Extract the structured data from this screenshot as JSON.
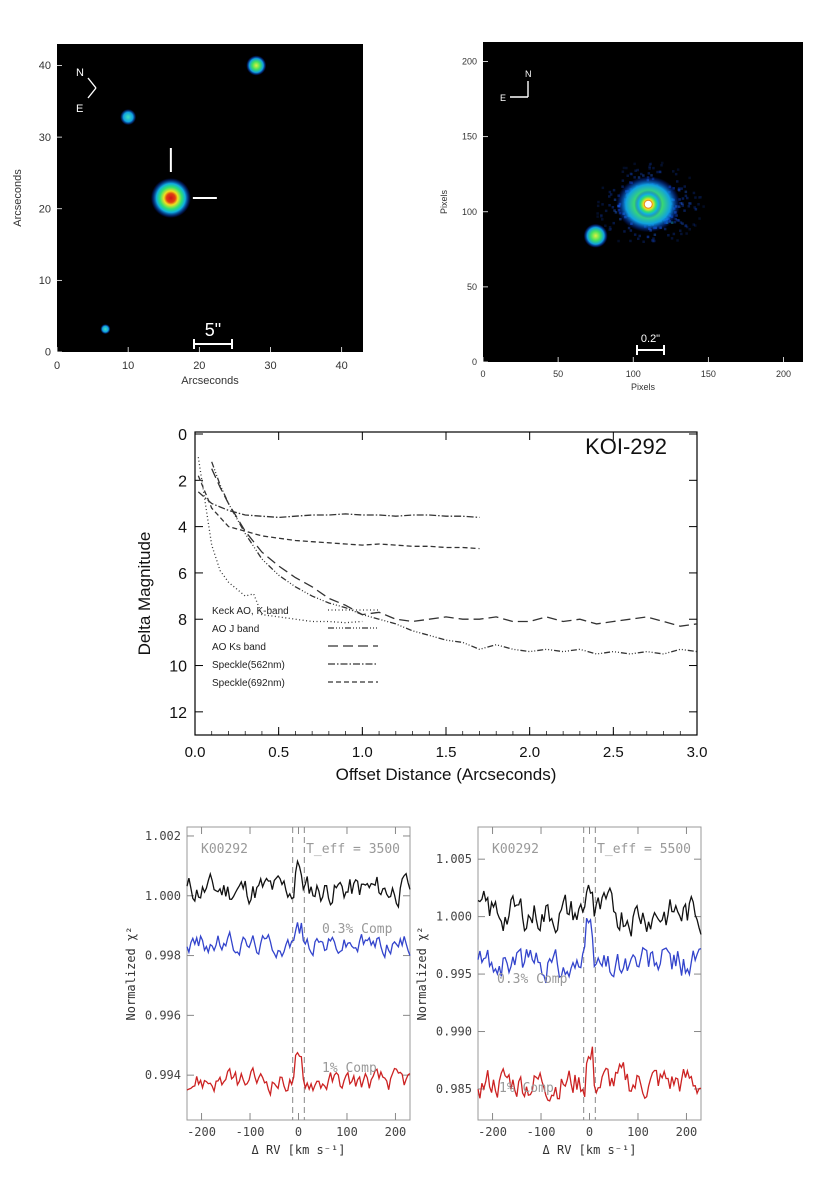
{
  "chart_data": [
    {
      "type": "heatmap",
      "panel": "wide-field",
      "xlabel": "Arcseconds",
      "ylabel": "Arcseconds",
      "xlim": [
        0,
        43
      ],
      "ylim": [
        0,
        43
      ],
      "xticks": [
        "0",
        "10",
        "20",
        "30",
        "40"
      ],
      "yticks": [
        "0",
        "10",
        "20",
        "30",
        "40"
      ],
      "compass": {
        "n": "N",
        "e": "E"
      },
      "scale_bar": "5\"",
      "background": "#000000",
      "sources": [
        {
          "x": 16,
          "y": 21.5,
          "brightness": "target",
          "marked": true
        },
        {
          "x": 28,
          "y": 40,
          "brightness": "bright"
        },
        {
          "x": 10,
          "y": 32.8,
          "brightness": "medium"
        },
        {
          "x": 6.8,
          "y": 3.2,
          "brightness": "faint"
        }
      ]
    },
    {
      "type": "heatmap",
      "panel": "ao-image",
      "xlabel": "Pixels",
      "ylabel": "Pixels",
      "xlim": [
        0,
        213
      ],
      "ylim": [
        0,
        213
      ],
      "xticks": [
        "0",
        "50",
        "100",
        "150",
        "200"
      ],
      "yticks": [
        "0",
        "50",
        "100",
        "150",
        "200"
      ],
      "compass": {
        "n": "N",
        "e": "E"
      },
      "scale_bar": "0.2\"",
      "background": "#000000",
      "sources": [
        {
          "x": 110,
          "y": 105,
          "brightness": "target"
        },
        {
          "x": 75,
          "y": 84,
          "brightness": "companion"
        }
      ]
    },
    {
      "type": "line",
      "panel": "contrast-curves",
      "title": "KOI-292",
      "xlabel": "Offset Distance (Arcseconds)",
      "ylabel": "Delta Magnitude",
      "xlim": [
        0,
        3
      ],
      "ylim": [
        13,
        0
      ],
      "xticks": [
        "0.0",
        "0.5",
        "1.0",
        "1.5",
        "2.0",
        "2.5",
        "3.0"
      ],
      "yticks": [
        "0",
        "2",
        "4",
        "6",
        "8",
        "10",
        "12"
      ],
      "legend_position": "bottom-left",
      "series": [
        {
          "name": "Keck AO, K-band",
          "dash": "1,2.5",
          "x": [
            0.02,
            0.1,
            0.15,
            0.2,
            0.3,
            0.35,
            0.4,
            0.5,
            0.6,
            0.7,
            0.8,
            0.9,
            1.0
          ],
          "y": [
            1.0,
            4.8,
            5.9,
            6.4,
            7.0,
            6.9,
            7.8,
            7.9,
            8.0,
            8.1,
            8.1,
            8.15,
            8.1
          ]
        },
        {
          "name": "AO J band",
          "dash": "6,2,1,2,1,2,1,2",
          "x": [
            0.1,
            0.15,
            0.2,
            0.3,
            0.4,
            0.5,
            0.6,
            0.7,
            0.8,
            0.9,
            1.0,
            1.1,
            1.2,
            1.3,
            1.4,
            1.5,
            1.6,
            1.7,
            1.8,
            1.9,
            2.0,
            2.1,
            2.2,
            2.3,
            2.4,
            2.5,
            2.6,
            2.7,
            2.8,
            2.9,
            3.0
          ],
          "y": [
            1.2,
            2.2,
            3.0,
            4.3,
            5.4,
            6.1,
            6.6,
            7.0,
            7.3,
            7.5,
            7.8,
            8.0,
            8.2,
            8.5,
            8.7,
            8.9,
            9.0,
            9.3,
            9.1,
            9.3,
            9.4,
            9.3,
            9.4,
            9.3,
            9.5,
            9.4,
            9.5,
            9.4,
            9.5,
            9.3,
            9.4
          ]
        },
        {
          "name": "AO Ks band",
          "dash": "10,5",
          "x": [
            0.1,
            0.15,
            0.2,
            0.3,
            0.4,
            0.5,
            0.6,
            0.7,
            0.8,
            0.9,
            1.0,
            1.1,
            1.2,
            1.3,
            1.4,
            1.5,
            1.6,
            1.7,
            1.8,
            1.9,
            2.0,
            2.1,
            2.2,
            2.3,
            2.4,
            2.5,
            2.6,
            2.7,
            2.8,
            2.9,
            3.0
          ],
          "y": [
            1.5,
            2.3,
            3.0,
            4.2,
            5.1,
            5.7,
            6.2,
            6.6,
            7.1,
            7.4,
            7.8,
            7.7,
            8.0,
            8.1,
            8.0,
            7.9,
            8.0,
            8.0,
            7.9,
            8.1,
            8.1,
            7.9,
            8.1,
            8.0,
            8.2,
            8.1,
            8.0,
            7.9,
            8.1,
            8.3,
            8.2
          ]
        },
        {
          "name": "Speckle(562nm)",
          "dash": "7,2,1.5,2",
          "x": [
            0.02,
            0.1,
            0.2,
            0.3,
            0.4,
            0.5,
            0.6,
            0.7,
            0.8,
            0.9,
            1.0,
            1.1,
            1.2,
            1.3,
            1.4,
            1.5,
            1.6,
            1.7
          ],
          "y": [
            2.5,
            3.0,
            3.3,
            3.5,
            3.55,
            3.6,
            3.55,
            3.5,
            3.5,
            3.45,
            3.5,
            3.5,
            3.55,
            3.5,
            3.5,
            3.55,
            3.55,
            3.6
          ]
        },
        {
          "name": "Speckle(692nm)",
          "dash": "5,3",
          "x": [
            0.02,
            0.1,
            0.2,
            0.3,
            0.4,
            0.5,
            0.6,
            0.7,
            0.8,
            0.9,
            1.0,
            1.1,
            1.2,
            1.3,
            1.4,
            1.5,
            1.6,
            1.7
          ],
          "y": [
            1.8,
            3.2,
            4.0,
            4.2,
            4.4,
            4.5,
            4.6,
            4.65,
            4.7,
            4.75,
            4.8,
            4.75,
            4.8,
            4.85,
            4.85,
            4.9,
            4.9,
            4.95
          ]
        }
      ]
    },
    {
      "type": "line",
      "panel": "ccf-3500",
      "xlabel": "Δ RV  [km s⁻¹]",
      "ylabel": "Normalized χ²",
      "xlim": [
        -230,
        230
      ],
      "ylim": [
        0.9925,
        1.0023
      ],
      "xticks": [
        "-200",
        "-100",
        "0",
        "100",
        "200"
      ],
      "yticks": [
        "0.994",
        "0.996",
        "0.998",
        "1.000",
        "1.002"
      ],
      "labels": {
        "koi": "K00292",
        "teff": "T_eff = 3500"
      },
      "vlines": [
        -12,
        12
      ],
      "series": [
        {
          "name": "",
          "color": "#111111",
          "baseline": 1.0002,
          "amplitude": 0.0004
        },
        {
          "name": "0.3% Comp",
          "color": "#3344cc",
          "baseline": 0.9984,
          "amplitude": 0.0003
        },
        {
          "name": "1% Comp",
          "color": "#cc2222",
          "baseline": 0.9938,
          "amplitude": 0.0003
        }
      ],
      "annotations": [
        "0.3% Comp",
        "1% Comp"
      ]
    },
    {
      "type": "line",
      "panel": "ccf-5500",
      "xlabel": "Δ RV  [km s⁻¹]",
      "ylabel": "Normalized χ²",
      "xlim": [
        -230,
        230
      ],
      "ylim": [
        0.9823,
        1.0078
      ],
      "xticks": [
        "-200",
        "-100",
        "0",
        "100",
        "200"
      ],
      "yticks": [
        "0.985",
        "0.990",
        "0.995",
        "1.000",
        "1.005"
      ],
      "labels": {
        "koi": "K00292",
        "teff": "T_eff = 5500"
      },
      "vlines": [
        -12,
        12
      ],
      "series": [
        {
          "name": "",
          "color": "#111111",
          "baseline": 1.0003,
          "amplitude": 0.0013
        },
        {
          "name": "0.3% Comp",
          "color": "#3344cc",
          "baseline": 0.996,
          "amplitude": 0.0012
        },
        {
          "name": "1% Comp",
          "color": "#cc2222",
          "baseline": 0.9855,
          "amplitude": 0.0012
        }
      ],
      "annotations": [
        "0.3% Comp",
        "1% Comp"
      ]
    }
  ]
}
